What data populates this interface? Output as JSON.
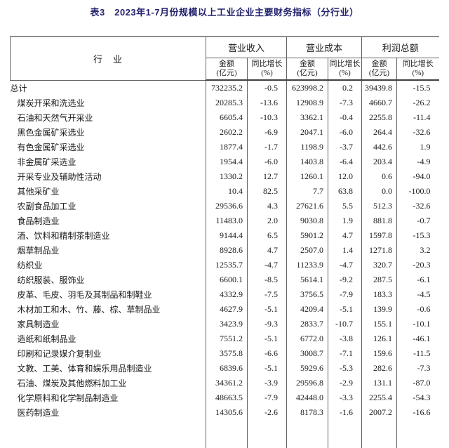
{
  "title": "表3　2023年1-7月份规模以上工业企业主要财务指标（分行业）",
  "colors": {
    "title_text": "#22226d",
    "table_text": "#1a1a1a",
    "grid_line": "#636363",
    "top_rule": "#8c8c8c",
    "header_rule": "#3f3f3f",
    "background": "#ffffff"
  },
  "table": {
    "industry_header": "行　业",
    "groups": [
      {
        "label": "营业收入",
        "sub": [
          {
            "l1": "金额",
            "l2": "(亿元)"
          },
          {
            "l1": "同比增长",
            "l2": "(%)"
          }
        ]
      },
      {
        "label": "营业成本",
        "sub": [
          {
            "l1": "金额",
            "l2": "(亿元)"
          },
          {
            "l1": "同比增长",
            "l2": "(%)"
          }
        ]
      },
      {
        "label": "利润总额",
        "sub": [
          {
            "l1": "金额",
            "l2": "(亿元)"
          },
          {
            "l1": "同比增长",
            "l2": "(%)"
          }
        ]
      }
    ],
    "rows": [
      {
        "industry": "总计",
        "indent": false,
        "values": [
          "732235.2",
          "-0.5",
          "623998.2",
          "0.2",
          "39439.8",
          "-15.5"
        ]
      },
      {
        "industry": "煤炭开采和洗选业",
        "indent": true,
        "values": [
          "20285.3",
          "-13.6",
          "12908.9",
          "-7.3",
          "4660.7",
          "-26.2"
        ]
      },
      {
        "industry": "石油和天然气开采业",
        "indent": true,
        "values": [
          "6605.4",
          "-10.3",
          "3362.1",
          "-0.4",
          "2255.8",
          "-11.4"
        ]
      },
      {
        "industry": "黑色金属矿采选业",
        "indent": true,
        "values": [
          "2602.2",
          "-6.9",
          "2047.1",
          "-6.0",
          "264.4",
          "-32.6"
        ]
      },
      {
        "industry": "有色金属矿采选业",
        "indent": true,
        "values": [
          "1877.4",
          "-1.7",
          "1198.9",
          "-3.7",
          "442.6",
          "1.9"
        ]
      },
      {
        "industry": "非金属矿采选业",
        "indent": true,
        "values": [
          "1954.4",
          "-6.0",
          "1403.8",
          "-6.4",
          "203.4",
          "-4.9"
        ]
      },
      {
        "industry": "开采专业及辅助性活动",
        "indent": true,
        "values": [
          "1330.2",
          "12.7",
          "1260.1",
          "12.0",
          "0.6",
          "-94.0"
        ]
      },
      {
        "industry": "其他采矿业",
        "indent": true,
        "values": [
          "10.4",
          "82.5",
          "7.7",
          "63.8",
          "0.0",
          "-100.0"
        ]
      },
      {
        "industry": "农副食品加工业",
        "indent": true,
        "values": [
          "29536.6",
          "4.3",
          "27621.6",
          "5.5",
          "512.3",
          "-32.6"
        ]
      },
      {
        "industry": "食品制造业",
        "indent": true,
        "values": [
          "11483.0",
          "2.0",
          "9030.8",
          "1.9",
          "881.8",
          "-0.7"
        ]
      },
      {
        "industry": "酒、饮料和精制茶制造业",
        "indent": true,
        "values": [
          "9144.4",
          "6.5",
          "5901.2",
          "4.7",
          "1597.8",
          "-15.3"
        ]
      },
      {
        "industry": "烟草制品业",
        "indent": true,
        "values": [
          "8928.6",
          "4.7",
          "2507.0",
          "1.4",
          "1271.8",
          "3.2"
        ]
      },
      {
        "industry": "纺织业",
        "indent": true,
        "values": [
          "12535.7",
          "-4.7",
          "11233.9",
          "-4.7",
          "320.7",
          "-20.3"
        ]
      },
      {
        "industry": "纺织服装、服饰业",
        "indent": true,
        "values": [
          "6600.1",
          "-8.5",
          "5614.1",
          "-9.2",
          "287.5",
          "-6.1"
        ]
      },
      {
        "industry": "皮革、毛皮、羽毛及其制品和制鞋业",
        "indent": true,
        "values": [
          "4332.9",
          "-7.5",
          "3756.5",
          "-7.9",
          "183.3",
          "-4.5"
        ]
      },
      {
        "industry": "木材加工和木、竹、藤、棕、草制品业",
        "indent": true,
        "values": [
          "4627.9",
          "-5.1",
          "4209.4",
          "-5.1",
          "139.9",
          "-0.6"
        ]
      },
      {
        "industry": "家具制造业",
        "indent": true,
        "values": [
          "3423.9",
          "-9.3",
          "2833.7",
          "-10.7",
          "155.1",
          "-10.1"
        ]
      },
      {
        "industry": "造纸和纸制品业",
        "indent": true,
        "values": [
          "7551.2",
          "-5.1",
          "6772.0",
          "-3.8",
          "126.1",
          "-46.1"
        ]
      },
      {
        "industry": "印刷和记录媒介复制业",
        "indent": true,
        "values": [
          "3575.8",
          "-6.6",
          "3008.7",
          "-7.1",
          "159.6",
          "-11.5"
        ]
      },
      {
        "industry": "文教、工美、体育和娱乐用品制造业",
        "indent": true,
        "values": [
          "6839.6",
          "-5.1",
          "5929.6",
          "-5.3",
          "282.6",
          "-7.3"
        ]
      },
      {
        "industry": "石油、煤炭及其他燃料加工业",
        "indent": true,
        "values": [
          "34361.2",
          "-3.9",
          "29596.8",
          "-2.9",
          "131.1",
          "-87.0"
        ]
      },
      {
        "industry": "化学原料和化学制品制造业",
        "indent": true,
        "values": [
          "48663.5",
          "-7.9",
          "42448.0",
          "-3.3",
          "2255.4",
          "-54.3"
        ]
      },
      {
        "industry": "医药制造业",
        "indent": true,
        "values": [
          "14305.6",
          "-2.6",
          "8178.3",
          "-1.6",
          "2007.2",
          "-16.6"
        ]
      }
    ]
  }
}
